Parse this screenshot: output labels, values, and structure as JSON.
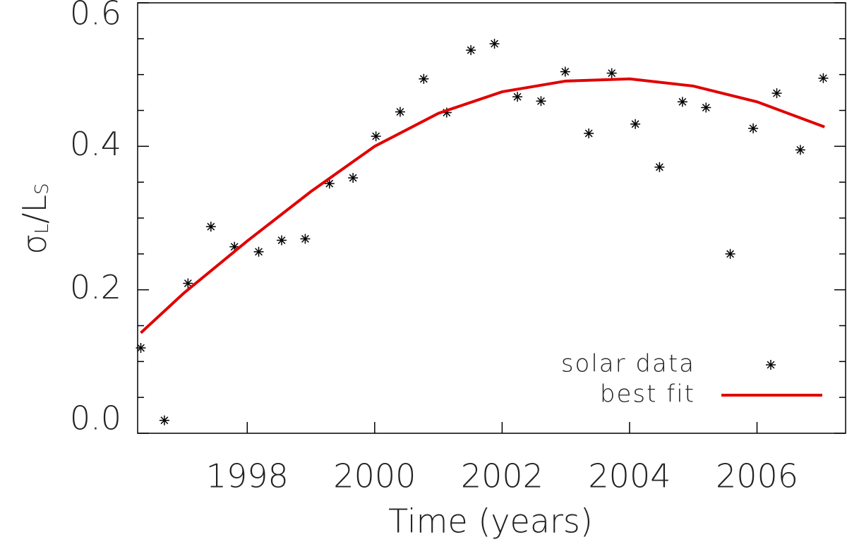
{
  "chart_data": {
    "type": "scatter",
    "xlabel": "Time (years)",
    "ylabel": [
      "σ",
      "L",
      "/L",
      "S"
    ],
    "xlim": [
      1996.28,
      2007.39
    ],
    "xticks": [
      1998,
      2000,
      2002,
      2004,
      2006
    ],
    "ylim": [
      0,
      0.6
    ],
    "yticks": [
      {
        "value": 0,
        "label": "0.0"
      },
      {
        "value": 0.2,
        "label": "0.2"
      },
      {
        "value": 0.4,
        "label": "0.4"
      },
      {
        "value": 0.6,
        "label": "0.6"
      }
    ],
    "yminorticks": [
      0.05,
      0.1,
      0.15,
      0.25,
      0.3,
      0.35,
      0.45,
      0.5,
      0.55
    ],
    "legend": "lower right",
    "series": [
      {
        "name": "solar data",
        "color": "#000000",
        "marker": "asterisk",
        "x": [
          1996.33,
          1996.7,
          1997.07,
          1997.43,
          1997.8,
          1998.18,
          1998.54,
          1998.91,
          1999.29,
          1999.66,
          2000.02,
          2000.4,
          2000.77,
          2001.13,
          2001.51,
          2001.88,
          2002.24,
          2002.61,
          2002.99,
          2003.36,
          2003.72,
          2004.09,
          2004.47,
          2004.83,
          2005.2,
          2005.58,
          2005.94,
          2006.31,
          2006.68,
          2007.04
        ],
        "values": [
          0.119,
          0.018,
          0.209,
          0.288,
          0.26,
          0.253,
          0.269,
          0.271,
          0.348,
          0.356,
          0.414,
          0.448,
          0.494,
          0.447,
          0.534,
          0.543,
          0.469,
          0.463,
          0.504,
          0.418,
          0.502,
          0.431,
          0.371,
          0.462,
          0.454,
          0.25,
          0.425,
          0.474,
          0.395,
          0.495
        ]
      },
      {
        "name": "best fit",
        "color": "#e00000",
        "marker": "line",
        "x": [
          1996.33,
          1997,
          1998,
          1999,
          2000,
          2001,
          2002,
          2003,
          2004,
          2005,
          2006,
          2007.06
        ],
        "values": [
          0.14,
          0.195,
          0.268,
          0.337,
          0.4,
          0.446,
          0.476,
          0.491,
          0.494,
          0.484,
          0.462,
          0.427
        ]
      }
    ]
  }
}
